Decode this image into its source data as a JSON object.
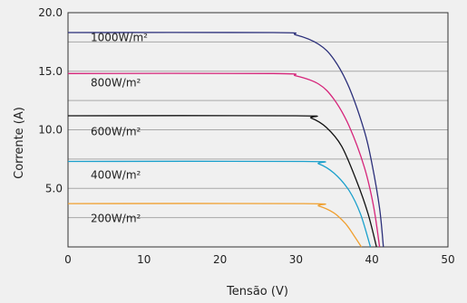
{
  "chart_data": {
    "type": "line",
    "title": "",
    "xlabel": "Tensão (V)",
    "ylabel": "Corrente (A)",
    "xlim": [
      0,
      50
    ],
    "ylim": [
      0,
      20
    ],
    "x_ticks": [
      "0",
      "10",
      "20",
      "30",
      "40",
      "50"
    ],
    "y_ticks": [
      "5.0",
      "10.0",
      "15.0",
      "20.0"
    ],
    "grid": "horizontal",
    "legend": "none",
    "annotations": [
      "1000W/m²",
      "800W/m²",
      "600W/m²",
      "400W/m²",
      "200W/m²"
    ],
    "series": [
      {
        "label": "1000W/m²",
        "color": "#2b2f7a",
        "points": [
          [
            0,
            18.3
          ],
          [
            27,
            18.3
          ],
          [
            30,
            18.1
          ],
          [
            33,
            17.3
          ],
          [
            35,
            16.0
          ],
          [
            37,
            13.6
          ],
          [
            39,
            9.9
          ],
          [
            40,
            7.1
          ],
          [
            41,
            3.3
          ],
          [
            41.5,
            0
          ]
        ]
      },
      {
        "label": "800W/m²",
        "color": "#d6247a",
        "points": [
          [
            0,
            14.8
          ],
          [
            27,
            14.8
          ],
          [
            30,
            14.6
          ],
          [
            33,
            13.9
          ],
          [
            35,
            12.6
          ],
          [
            37,
            10.3
          ],
          [
            39,
            6.8
          ],
          [
            40.2,
            3.5
          ],
          [
            41.0,
            0
          ]
        ]
      },
      {
        "label": "600W/m²",
        "color": "#111111",
        "points": [
          [
            0,
            11.2
          ],
          [
            30,
            11.2
          ],
          [
            32,
            11.0
          ],
          [
            34,
            10.2
          ],
          [
            36,
            8.6
          ],
          [
            38,
            5.6
          ],
          [
            39.5,
            2.8
          ],
          [
            40.6,
            0
          ]
        ]
      },
      {
        "label": "400W/m²",
        "color": "#1aa0cc",
        "points": [
          [
            0,
            7.3
          ],
          [
            31,
            7.3
          ],
          [
            33,
            7.1
          ],
          [
            35,
            6.3
          ],
          [
            37,
            4.8
          ],
          [
            38.5,
            2.8
          ],
          [
            39.8,
            0
          ]
        ]
      },
      {
        "label": "200W/m²",
        "color": "#f0a030",
        "points": [
          [
            0,
            3.7
          ],
          [
            31,
            3.7
          ],
          [
            33,
            3.5
          ],
          [
            35,
            2.9
          ],
          [
            36.5,
            2.0
          ],
          [
            37.6,
            1.0
          ],
          [
            38.6,
            0
          ]
        ]
      }
    ]
  }
}
